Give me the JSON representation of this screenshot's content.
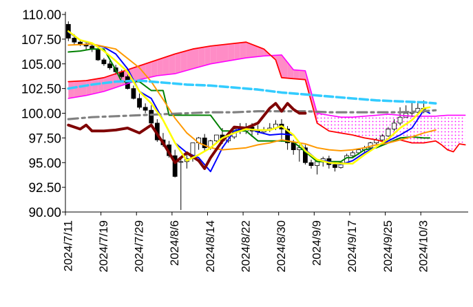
{
  "chart_data": {
    "type": "line",
    "title": "",
    "xlabel": "",
    "ylabel": "",
    "ylim": [
      90,
      110
    ],
    "y_ticks": [
      "110.00",
      "107.50",
      "105.00",
      "102.50",
      "100.00",
      "97.50",
      "95.00",
      "92.50",
      "90.00"
    ],
    "x_tick_labels": [
      "2024/7/11",
      "2024/7/19",
      "2024/7/29",
      "2024/8/6",
      "2024/8/14",
      "2024/8/22",
      "2024/8/30",
      "2024/9/9",
      "2024/9/17",
      "2024/9/25",
      "2024/10/3"
    ],
    "x_tick_index": [
      0,
      6,
      12,
      18,
      24,
      30,
      36,
      42,
      48,
      54,
      60
    ],
    "n_slots": 68,
    "grid": false,
    "legend": "none",
    "colors": {
      "candle_up": "#ffffff",
      "candle_down": "#000000",
      "cloud_pos": "#ff8cc6",
      "cloud_neg": "#ff00ff",
      "span_a": "#ff00ff",
      "span_b": "#ff0000",
      "conversion_line": "#0000ff",
      "base_line": "#008000",
      "lagging_span": "#7f0000",
      "ma_short": "#ffff00",
      "ma_mid": "#ff9900",
      "ma_long": "#33ccff",
      "ma_longest": "#808080"
    },
    "candles": {
      "open": [
        109.0,
        107.6,
        107.2,
        107.0,
        106.8,
        106.5,
        105.4,
        105.0,
        104.6,
        104.2,
        103.7,
        102.5,
        101.5,
        100.6,
        100.3,
        99.0,
        97.3,
        96.8,
        95.7,
        95.1,
        95.1,
        95.4,
        97.0,
        97.5,
        96.5,
        97.2,
        97.8,
        97.2,
        97.6,
        98.4,
        98.2,
        98.6,
        98.2,
        98.1,
        98.3,
        98.5,
        98.9,
        98.4,
        97.0,
        96.3,
        96.5,
        95.0,
        94.7,
        95.1,
        95.4,
        94.8,
        94.5,
        95.0,
        95.7,
        96.0,
        96.3,
        96.5,
        97.0,
        97.3,
        97.7,
        98.4,
        99.0,
        99.6,
        100.0,
        100.1,
        100.5
      ],
      "high": [
        109.3,
        108.0,
        107.5,
        107.2,
        107.0,
        106.8,
        105.6,
        105.3,
        104.9,
        104.4,
        103.9,
        102.8,
        102.0,
        101.0,
        100.8,
        99.4,
        98.0,
        97.2,
        96.3,
        95.6,
        96.0,
        97.0,
        97.6,
        97.9,
        97.3,
        97.8,
        98.5,
        97.8,
        98.5,
        99.0,
        99.0,
        99.0,
        98.8,
        98.6,
        99.0,
        99.3,
        99.4,
        98.7,
        97.3,
        96.8,
        96.8,
        95.3,
        95.2,
        95.6,
        95.7,
        95.1,
        95.1,
        95.9,
        96.2,
        96.3,
        96.7,
        97.1,
        97.5,
        97.9,
        98.6,
        99.4,
        100.6,
        100.8,
        101.1,
        101.2,
        101.3
      ],
      "low": [
        107.3,
        106.9,
        106.8,
        106.4,
        106.2,
        105.3,
        104.8,
        104.4,
        103.9,
        103.5,
        102.4,
        101.4,
        100.4,
        100.0,
        98.8,
        97.1,
        96.6,
        95.5,
        93.5,
        90.2,
        94.4,
        95.1,
        96.3,
        96.2,
        96.3,
        96.9,
        96.9,
        97.0,
        97.4,
        97.9,
        97.9,
        97.6,
        97.8,
        97.9,
        98.1,
        98.3,
        97.1,
        96.3,
        95.8,
        95.1,
        94.8,
        94.4,
        93.8,
        94.6,
        94.4,
        94.1,
        94.4,
        95.0,
        95.5,
        95.8,
        96.1,
        96.4,
        96.8,
        97.2,
        97.6,
        98.2,
        98.8,
        99.6,
        99.6,
        99.9,
        100.0
      ],
      "close": [
        107.6,
        107.2,
        107.0,
        106.8,
        106.5,
        105.4,
        105.0,
        104.6,
        104.2,
        103.7,
        102.5,
        101.5,
        100.6,
        100.3,
        99.0,
        97.3,
        96.8,
        95.7,
        93.6,
        95.1,
        95.4,
        97.0,
        97.5,
        96.5,
        97.2,
        97.8,
        97.2,
        97.6,
        98.4,
        98.2,
        98.6,
        98.2,
        98.1,
        98.3,
        98.5,
        98.9,
        98.4,
        97.0,
        96.3,
        96.5,
        95.0,
        94.7,
        95.1,
        95.4,
        94.8,
        94.5,
        95.0,
        95.7,
        96.0,
        96.3,
        96.5,
        97.0,
        97.3,
        97.7,
        98.4,
        99.0,
        99.6,
        100.0,
        100.1,
        100.5,
        100.4
      ]
    },
    "series": [
      {
        "key": "span_a",
        "x": [
          0,
          3,
          6,
          9,
          12,
          15,
          18,
          21,
          24,
          27,
          30,
          33,
          36,
          38,
          40,
          42,
          44,
          46,
          48,
          50,
          52,
          54,
          56,
          58,
          60,
          62,
          64,
          66,
          67
        ],
        "values": [
          101.5,
          101.8,
          102.2,
          102.8,
          103.4,
          103.8,
          104.0,
          104.5,
          105.0,
          105.3,
          105.6,
          105.8,
          105.9,
          104.4,
          104.3,
          100.0,
          99.8,
          99.6,
          99.6,
          99.7,
          99.8,
          99.9,
          99.8,
          99.7,
          99.7,
          99.7,
          99.8,
          99.8,
          99.8
        ]
      },
      {
        "key": "span_b",
        "x": [
          0,
          3,
          6,
          9,
          12,
          15,
          18,
          21,
          24,
          27,
          30,
          33,
          35,
          36,
          38,
          40,
          42,
          44,
          46,
          48,
          50,
          52,
          54,
          56,
          58,
          60,
          62,
          63,
          64,
          65,
          66,
          67
        ],
        "values": [
          103.2,
          103.3,
          103.6,
          104.2,
          104.8,
          105.4,
          106.0,
          106.5,
          106.8,
          107.0,
          107.2,
          106.5,
          105.4,
          103.6,
          103.5,
          103.4,
          99.0,
          98.2,
          98.0,
          97.8,
          97.5,
          97.3,
          97.0,
          97.3,
          97.0,
          97.0,
          97.2,
          96.8,
          96.3,
          96.1,
          96.9,
          96.8
        ]
      },
      {
        "key": "conversion_line",
        "x": [
          0,
          2,
          4,
          6,
          8,
          10,
          12,
          14,
          16,
          18,
          20,
          22,
          24,
          26,
          28,
          30,
          32,
          34,
          36,
          38,
          40,
          42,
          44,
          46,
          48,
          50,
          52,
          54,
          56,
          58,
          60,
          61
        ],
        "values": [
          108.2,
          107.4,
          107.0,
          106.7,
          106.0,
          104.5,
          102.2,
          101.5,
          99.3,
          97.0,
          96.0,
          95.5,
          94.1,
          96.5,
          98.2,
          98.6,
          98.1,
          97.8,
          97.9,
          97.8,
          96.3,
          95.3,
          95.1,
          94.8,
          95.2,
          96.0,
          96.6,
          97.2,
          97.8,
          98.5,
          100.3,
          100.0
        ]
      },
      {
        "key": "base_line",
        "x": [
          0,
          2,
          4,
          6,
          8,
          9,
          10,
          12,
          14,
          16,
          17,
          18,
          24,
          26,
          28,
          30,
          32,
          34,
          36,
          38,
          40,
          42,
          44,
          46,
          47,
          48,
          50,
          52,
          54,
          56,
          58,
          60,
          61
        ],
        "values": [
          106.2,
          106.3,
          106.5,
          106.5,
          104.4,
          103.2,
          103.2,
          103.2,
          102.3,
          102.3,
          99.8,
          99.8,
          99.8,
          98.2,
          98.2,
          98.2,
          97.2,
          97.2,
          97.2,
          97.1,
          96.1,
          95.1,
          95.1,
          95.1,
          95.5,
          95.5,
          96.3,
          96.5,
          97.0,
          97.5,
          97.6,
          97.5,
          97.5
        ]
      },
      {
        "key": "lagging_span",
        "x": [
          0,
          2,
          3,
          4,
          6,
          8,
          10,
          12,
          14,
          16,
          18,
          20,
          22,
          23,
          24,
          26,
          28,
          30,
          32,
          34,
          35,
          36,
          37,
          38,
          39,
          40
        ],
        "values": [
          98.8,
          98.4,
          98.8,
          98.2,
          98.2,
          98.3,
          98.5,
          98.0,
          98.8,
          97.0,
          95.0,
          96.0,
          95.2,
          94.4,
          95.5,
          97.2,
          98.6,
          98.5,
          99.0,
          100.5,
          101.0,
          100.2,
          101.0,
          100.4,
          100.0,
          100.0
        ]
      },
      {
        "key": "ma_short",
        "x": [
          0,
          2,
          4,
          6,
          8,
          10,
          12,
          14,
          16,
          18,
          20,
          22,
          24,
          26,
          28,
          30,
          32,
          34,
          36,
          38,
          40,
          42,
          44,
          46,
          48,
          50,
          52,
          54,
          56,
          58,
          60,
          61
        ],
        "values": [
          108.3,
          107.4,
          107.1,
          106.3,
          105.3,
          104.2,
          102.2,
          101.0,
          99.3,
          97.0,
          95.2,
          95.8,
          96.5,
          97.5,
          98.0,
          98.4,
          98.3,
          98.3,
          98.7,
          97.8,
          96.2,
          95.3,
          95.0,
          94.9,
          94.9,
          95.8,
          96.6,
          97.4,
          98.5,
          99.3,
          100.5,
          100.6
        ]
      },
      {
        "key": "ma_mid",
        "x": [
          0,
          4,
          8,
          12,
          14,
          16,
          18,
          20,
          22,
          24,
          26,
          28,
          30,
          32,
          34,
          36,
          38,
          40,
          42,
          44,
          46,
          48,
          50,
          52,
          54,
          56,
          58,
          60,
          62
        ],
        "values": [
          106.9,
          107.0,
          106.5,
          104.6,
          103.2,
          101.4,
          99.5,
          98.0,
          97.0,
          96.5,
          96.3,
          96.4,
          96.5,
          96.8,
          97.0,
          97.3,
          97.1,
          96.9,
          96.5,
          96.3,
          96.2,
          96.3,
          96.5,
          96.8,
          97.0,
          97.3,
          97.6,
          98.0,
          98.3
        ]
      },
      {
        "key": "ma_long",
        "x": [
          0,
          4,
          8,
          12,
          14,
          16,
          18,
          20,
          24,
          28,
          32,
          36,
          40,
          44,
          48,
          52,
          56,
          60,
          62
        ],
        "values": [
          102.5,
          102.9,
          103.2,
          103.3,
          103.2,
          103.1,
          103.0,
          102.9,
          102.8,
          102.6,
          102.4,
          102.1,
          101.9,
          101.7,
          101.5,
          101.3,
          101.2,
          101.1,
          101.0
        ]
      },
      {
        "key": "ma_longest",
        "x": [
          0,
          4,
          8,
          12,
          16,
          20,
          24,
          28,
          32,
          36,
          40,
          44,
          48,
          52,
          56,
          60,
          62
        ],
        "values": [
          99.4,
          99.6,
          99.7,
          99.8,
          99.9,
          100.0,
          100.1,
          100.1,
          100.2,
          100.2,
          100.2,
          100.1,
          100.1,
          100.1,
          100.1,
          100.2,
          100.3
        ]
      }
    ]
  }
}
